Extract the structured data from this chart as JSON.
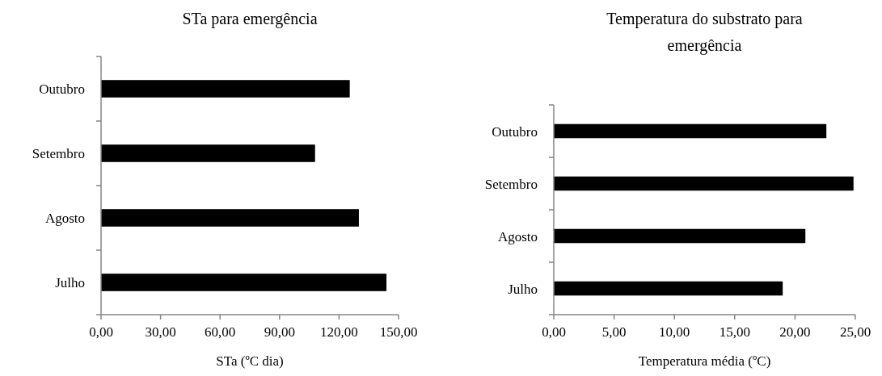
{
  "chart_data": [
    {
      "type": "bar",
      "orientation": "horizontal",
      "title": "STa para emergência",
      "xlabel": "STa (ºC dia)",
      "categories": [
        "Outubro",
        "Setembro",
        "Agosto",
        "Julho"
      ],
      "values": [
        125.4,
        107.9,
        130.0,
        143.9
      ],
      "color": "#000000",
      "xlim": [
        0,
        150
      ],
      "xticks": [
        {
          "value": 0,
          "label": "0,00"
        },
        {
          "value": 30,
          "label": "30,00"
        },
        {
          "value": 60,
          "label": "60,00"
        },
        {
          "value": 90,
          "label": "90,00"
        },
        {
          "value": 120,
          "label": "120,00"
        },
        {
          "value": 150,
          "label": "150,00"
        }
      ]
    },
    {
      "type": "bar",
      "orientation": "horizontal",
      "title": "Temperatura do substrato para\nemergência",
      "xlabel": "Temperatura média (ºC)",
      "categories": [
        "Outubro",
        "Setembro",
        "Agosto",
        "Julho"
      ],
      "values": [
        22.6,
        24.85,
        20.86,
        18.98
      ],
      "color": "#000000",
      "xlim": [
        0,
        25
      ],
      "xticks": [
        {
          "value": 0,
          "label": "0,00"
        },
        {
          "value": 5,
          "label": "5,00"
        },
        {
          "value": 10,
          "label": "10,00"
        },
        {
          "value": 15,
          "label": "15,00"
        },
        {
          "value": 20,
          "label": "20,00"
        },
        {
          "value": 25,
          "label": "25,00"
        }
      ]
    }
  ]
}
